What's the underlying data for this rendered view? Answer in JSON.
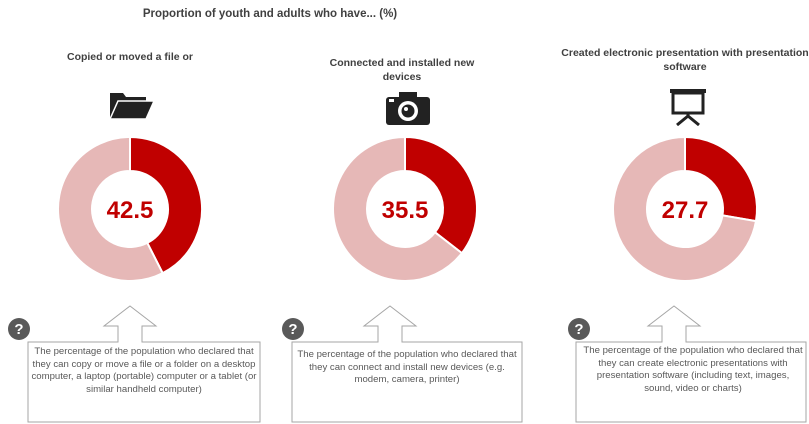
{
  "title": "Proportion of youth and adults who have... (%)",
  "colors": {
    "filled": "#C00000",
    "remainder": "#E6B8B7",
    "value_text": "#C00000",
    "callout_border": "#A6A6A6"
  },
  "chart_data": [
    {
      "type": "pie",
      "title": "Copied or moved a file or",
      "icon": "folder-icon",
      "value": 42.5,
      "value_label": "42.5",
      "slices": [
        {
          "value": 42.5
        },
        {
          "value": 57.5
        }
      ],
      "note": "The percentage of the population who declared that they can copy or move a file or a folder on a desktop computer, a laptop (portable) computer or a tablet (or similar handheld computer)"
    },
    {
      "type": "pie",
      "title": "Connected and installed new devices",
      "icon": "camera-icon",
      "value": 35.5,
      "value_label": "35.5",
      "slices": [
        {
          "value": 35.5
        },
        {
          "value": 64.5
        }
      ],
      "note": "The percentage of the population who declared that they can connect and install new devices (e.g. modem, camera, printer)"
    },
    {
      "type": "pie",
      "title": "Created electronic presentation with presentation software",
      "icon": "projector-screen-icon",
      "value": 27.7,
      "value_label": "27.7",
      "slices": [
        {
          "value": 27.7
        },
        {
          "value": 72.3
        }
      ],
      "note": "The percentage of the population who declared that they can create electronic presentations with presentation software (including text, images, sound, video or charts)"
    }
  ]
}
